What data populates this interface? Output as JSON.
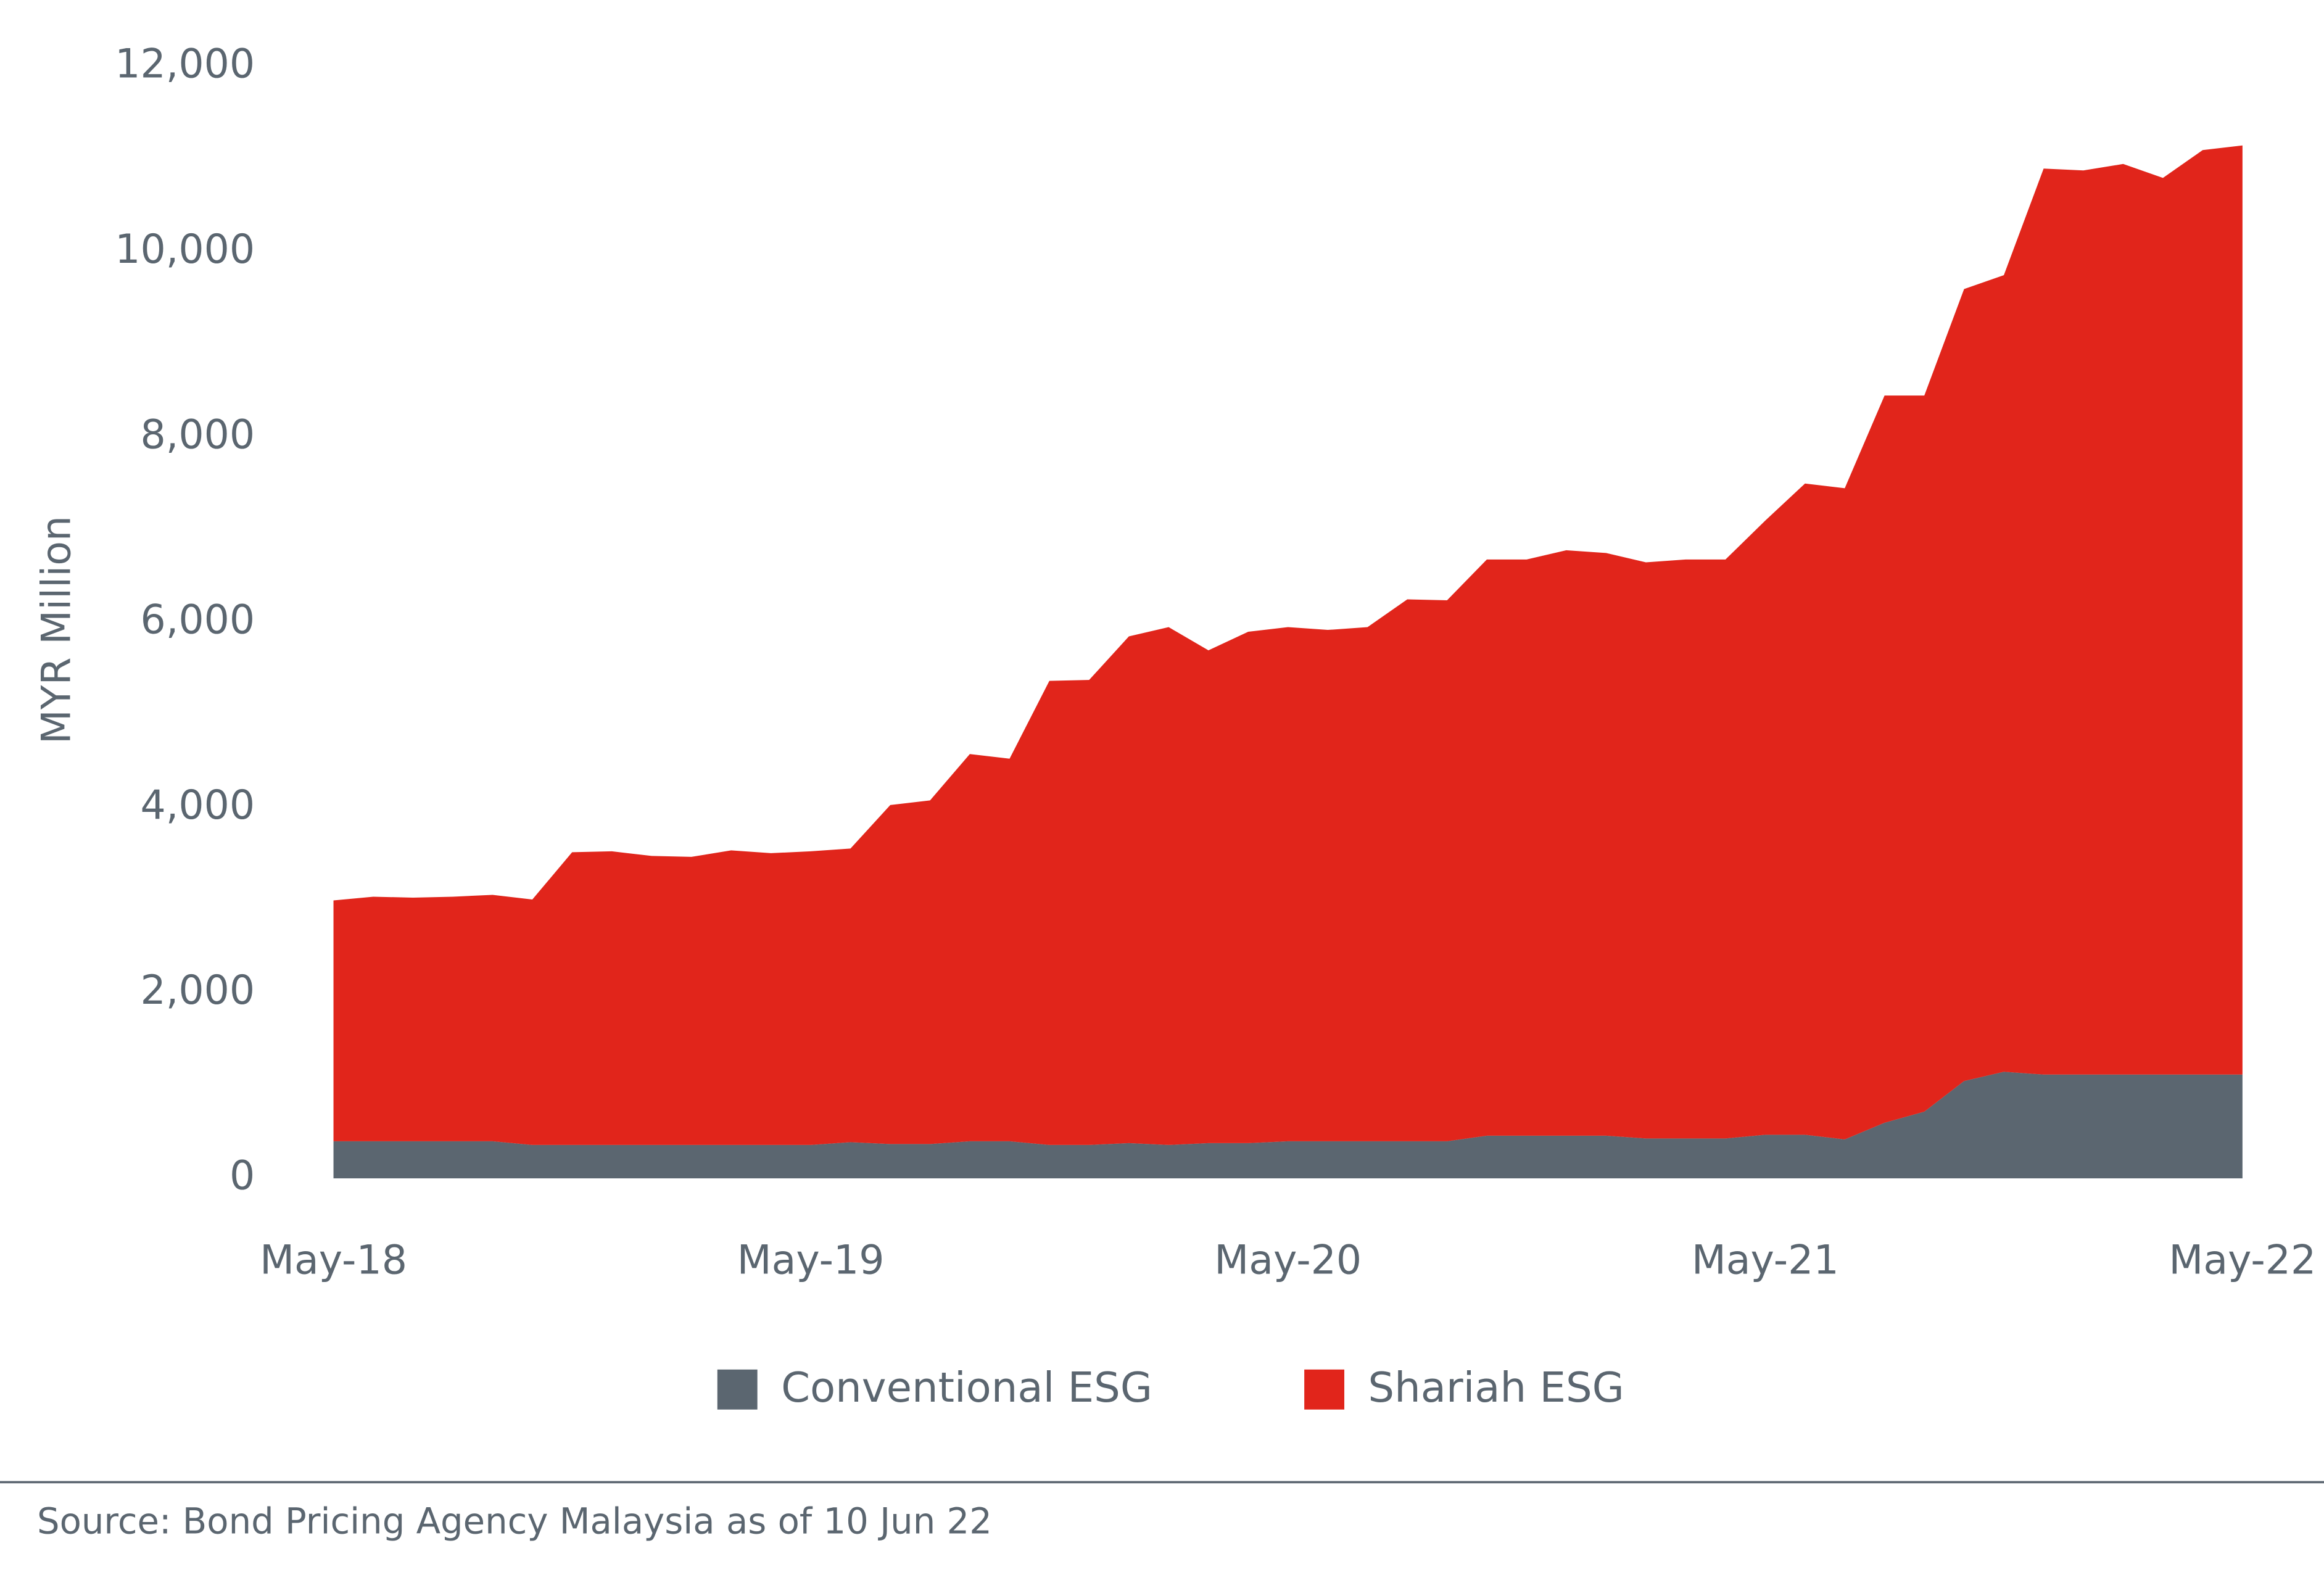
{
  "chart_data": {
    "type": "stacked_area",
    "ylabel": "MYR Million",
    "categories": [
      "May-18",
      null,
      null,
      null,
      null,
      null,
      null,
      null,
      null,
      null,
      null,
      null,
      "May-19",
      null,
      null,
      null,
      null,
      null,
      null,
      null,
      null,
      null,
      null,
      null,
      "May-20",
      null,
      null,
      null,
      null,
      null,
      null,
      null,
      null,
      null,
      null,
      null,
      "May-21",
      null,
      null,
      null,
      null,
      null,
      null,
      null,
      null,
      null,
      null,
      null,
      "May-22"
    ],
    "series": [
      {
        "name": "Conventional ESG",
        "color": "#5b6670",
        "values": [
          400,
          400,
          400,
          400,
          400,
          360,
          360,
          360,
          360,
          360,
          360,
          360,
          360,
          390,
          370,
          370,
          400,
          400,
          360,
          360,
          380,
          360,
          380,
          380,
          400,
          400,
          400,
          400,
          400,
          460,
          460,
          460,
          460,
          430,
          430,
          430,
          470,
          470,
          420,
          600,
          720,
          1050,
          1150,
          1120,
          1120,
          1120,
          1120,
          1120,
          1120
        ]
      },
      {
        "name": "Shariah ESG",
        "color": "#e1251b",
        "values": [
          2600,
          2640,
          2630,
          2640,
          2660,
          2650,
          3160,
          3170,
          3120,
          3110,
          3180,
          3150,
          3170,
          3170,
          3660,
          3710,
          4180,
          4130,
          5010,
          5020,
          5470,
          5590,
          5320,
          5520,
          5550,
          5520,
          5550,
          5850,
          5840,
          6220,
          6220,
          6320,
          6290,
          6220,
          6250,
          6250,
          6630,
          7030,
          7030,
          7850,
          7730,
          8550,
          8600,
          9780,
          9760,
          9830,
          9680,
          9980,
          10030
        ]
      }
    ],
    "ylim": [
      0,
      12000
    ],
    "yticks": [
      0,
      {
        "value": 2000,
        "label": "2,000"
      },
      {
        "value": 4000,
        "label": "4,000"
      },
      {
        "value": 6000,
        "label": "6,000"
      },
      {
        "value": 8000,
        "label": "8,000"
      },
      {
        "value": 10000,
        "label": "10,000"
      },
      {
        "value": 12000,
        "label": "12,000"
      }
    ],
    "legend": "bottom",
    "source": "Source: Bond Pricing Agency Malaysia as of 10 Jun 22"
  }
}
